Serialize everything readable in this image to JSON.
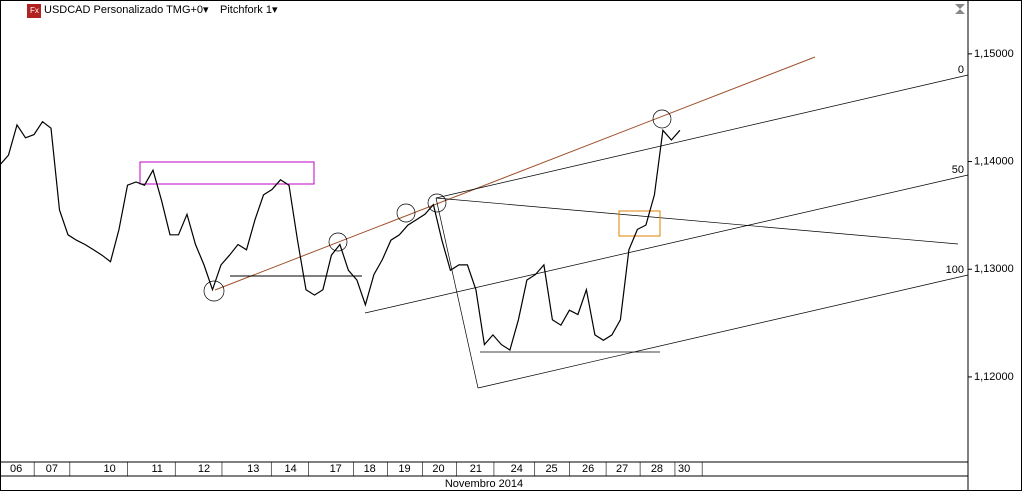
{
  "chart_data": {
    "type": "line",
    "title": "USDCAD Personalizado TMG+0▾",
    "subtitle": "Pitchfork 1▾",
    "x_axis_label": "Novembro 2014",
    "level_labels": [
      "0",
      "50",
      "100"
    ],
    "x": [
      0,
      1,
      2,
      3,
      4,
      5,
      6,
      7,
      8,
      9,
      10,
      11,
      12,
      13,
      14,
      15,
      16,
      17,
      18,
      19,
      20,
      21,
      22,
      23,
      24,
      25,
      26,
      27,
      28,
      29,
      30,
      31,
      32,
      33,
      34,
      35,
      36,
      37,
      38,
      39,
      40,
      41,
      42,
      43,
      44,
      45,
      46,
      47,
      48,
      49,
      50,
      51,
      52,
      53,
      54,
      55,
      56,
      57,
      58,
      59,
      60,
      61,
      62,
      63,
      64,
      65,
      66,
      67,
      68,
      69,
      70,
      71,
      72,
      73,
      74,
      75,
      76,
      77,
      78,
      79,
      80
    ],
    "series": [
      {
        "name": "USDCAD",
        "color": "#000000",
        "values": [
          1.1397,
          1.1406,
          1.1434,
          1.1422,
          1.1425,
          1.1437,
          1.1431,
          1.1355,
          1.1332,
          1.1327,
          1.1323,
          1.1318,
          1.1313,
          1.1307,
          1.1337,
          1.1378,
          1.1381,
          1.1378,
          1.1392,
          1.1364,
          1.1332,
          1.1332,
          1.1351,
          1.1323,
          1.1304,
          1.1281,
          1.1304,
          1.1313,
          1.1323,
          1.1318,
          1.1346,
          1.1369,
          1.1374,
          1.1383,
          1.1378,
          1.1327,
          1.1281,
          1.1276,
          1.1281,
          1.1313,
          1.1323,
          1.1299,
          1.129,
          1.1267,
          1.1295,
          1.1309,
          1.1327,
          1.1332,
          1.1341,
          1.1346,
          1.1351,
          1.136,
          1.1327,
          1.1299,
          1.1304,
          1.1304,
          1.1281,
          1.123,
          1.1239,
          1.123,
          1.1225,
          1.1253,
          1.129,
          1.1295,
          1.1304,
          1.1253,
          1.1248,
          1.1262,
          1.1258,
          1.1281,
          1.1239,
          1.1234,
          1.1239,
          1.1253,
          1.1318,
          1.1337,
          1.1341,
          1.1369,
          1.1429,
          1.142,
          1.1429
        ]
      }
    ],
    "xlim": [
      0,
      113.9
    ],
    "xticks": [
      {
        "value": 1.9,
        "label": "06"
      },
      {
        "value": 6.1,
        "label": "07"
      },
      {
        "value": 12.9,
        "label": "10"
      },
      {
        "value": 18.5,
        "label": "11"
      },
      {
        "value": 24,
        "label": "12"
      },
      {
        "value": 29.8,
        "label": "13"
      },
      {
        "value": 34.2,
        "label": "14"
      },
      {
        "value": 39.5,
        "label": "17"
      },
      {
        "value": 43.5,
        "label": "18"
      },
      {
        "value": 47.6,
        "label": "19"
      },
      {
        "value": 51.6,
        "label": "20"
      },
      {
        "value": 56,
        "label": "21"
      },
      {
        "value": 60.8,
        "label": "24"
      },
      {
        "value": 64.9,
        "label": "25"
      },
      {
        "value": 69.2,
        "label": "26"
      },
      {
        "value": 73.2,
        "label": "27"
      },
      {
        "value": 77.3,
        "label": "28"
      },
      {
        "value": 80.5,
        "label": "30"
      }
    ],
    "ylim": [
      1.1121,
      1.155
    ],
    "yticks": [
      {
        "value": 1.12,
        "label": "1,12000"
      },
      {
        "value": 1.13,
        "label": "1,13000"
      },
      {
        "value": 1.14,
        "label": "1,14000"
      },
      {
        "value": 1.15,
        "label": "1,15000"
      }
    ]
  }
}
